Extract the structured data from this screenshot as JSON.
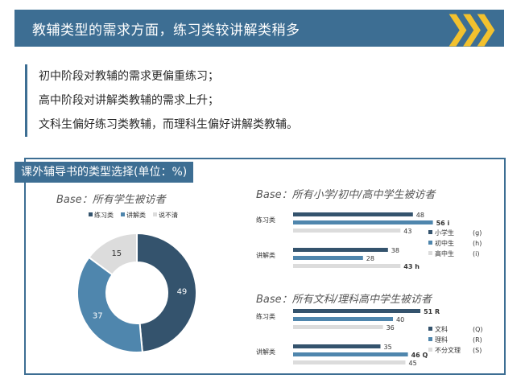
{
  "banner": {
    "title": "教辅类型的需求方面，练习类较讲解类稍多",
    "arrows": "❯❯❯"
  },
  "notes": [
    "初中阶段对教辅的需求更偏重练习；",
    "高中阶段对讲解类教辅的需求上升；",
    "文科生偏好练习类教辅，而理科生偏好讲解类教辅。"
  ],
  "panel": {
    "title": "课外辅导书的类型选择(单位：%)"
  },
  "colors": {
    "dark": "#34536d",
    "mid": "#4f86ad",
    "light": "#dcdcdc",
    "accent": "#3d6e93"
  },
  "chart_data": [
    {
      "type": "pie",
      "donut": true,
      "title": "Base：所有学生被访者",
      "legend": [
        "练习类",
        "讲解类",
        "说不清"
      ],
      "legend_position": "top",
      "values": [
        49,
        37,
        15
      ]
    },
    {
      "type": "bar",
      "orientation": "horizontal",
      "title": "Base：所有小学/初中/高中学生被访者",
      "categories": [
        "练习类",
        "讲解类"
      ],
      "legend_position": "right",
      "series": [
        {
          "name": "小学生",
          "values": [
            48,
            38
          ],
          "legend_tag": "(g)",
          "value_tags": [
            "",
            ""
          ]
        },
        {
          "name": "初中生",
          "values": [
            56,
            28
          ],
          "legend_tag": "(h)",
          "value_tags": [
            "i",
            ""
          ]
        },
        {
          "name": "高中生",
          "values": [
            43,
            43
          ],
          "legend_tag": "(i)",
          "value_tags": [
            "",
            "h"
          ]
        }
      ]
    },
    {
      "type": "bar",
      "orientation": "horizontal",
      "title": "Base：所有文科/理科高中学生被访者",
      "categories": [
        "练习类",
        "讲解类"
      ],
      "legend_position": "right",
      "series": [
        {
          "name": "文科",
          "values": [
            51,
            35
          ],
          "legend_tag": "(Q)",
          "value_tags": [
            "R",
            ""
          ]
        },
        {
          "name": "理科",
          "values": [
            40,
            46
          ],
          "legend_tag": "(R)",
          "value_tags": [
            "",
            "Q"
          ]
        },
        {
          "name": "不分文理",
          "values": [
            36,
            45
          ],
          "legend_tag": "(S)",
          "value_tags": [
            "",
            ""
          ]
        }
      ]
    }
  ]
}
